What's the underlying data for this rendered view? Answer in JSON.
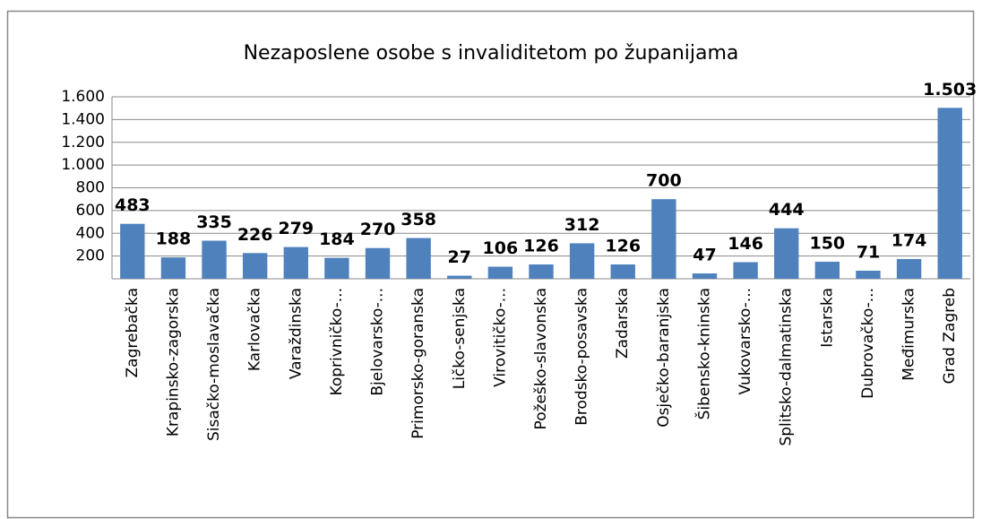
{
  "chart_data": {
    "type": "bar",
    "title": "Nezaposlene osobe s invaliditetom po županijama",
    "categories": [
      "Zagrebačka",
      "Krapinsko-zagorska",
      "Sisačko-moslavačka",
      "Karlovačka",
      "Varaždinska",
      "Koprivničko-...",
      "Bjelovarsko-...",
      "Primorsko-goranska",
      "Ličko-senjska",
      "Virovitičko-...",
      "Požeško-slavonska",
      "Brodsko-posavska",
      "Zadarska",
      "Osječko-baranjska",
      "Šibensko-kninska",
      "Vukovarsko-...",
      "Splitsko-dalmatinska",
      "Istarska",
      "Dubrovačko-...",
      "Međimurska",
      "Grad Zagreb"
    ],
    "values": [
      483,
      188,
      335,
      226,
      279,
      184,
      270,
      358,
      27,
      106,
      126,
      312,
      126,
      700,
      47,
      146,
      444,
      150,
      71,
      174,
      1503
    ],
    "value_labels": [
      "483",
      "188",
      "335",
      "226",
      "279",
      "184",
      "270",
      "358",
      "27",
      "106",
      "126",
      "312",
      "126",
      "700",
      "47",
      "146",
      "444",
      "150",
      "71",
      "174",
      "1.503"
    ],
    "color": "#4f81bd",
    "ylim": [
      0,
      1600
    ],
    "yticks": [
      200,
      400,
      600,
      800,
      {
        "value": 1000,
        "label": "1.000"
      },
      {
        "value": 1200,
        "label": "1.200"
      },
      {
        "value": 1400,
        "label": "1.400"
      },
      {
        "value": 1600,
        "label": "1.600"
      }
    ],
    "grid": true
  }
}
